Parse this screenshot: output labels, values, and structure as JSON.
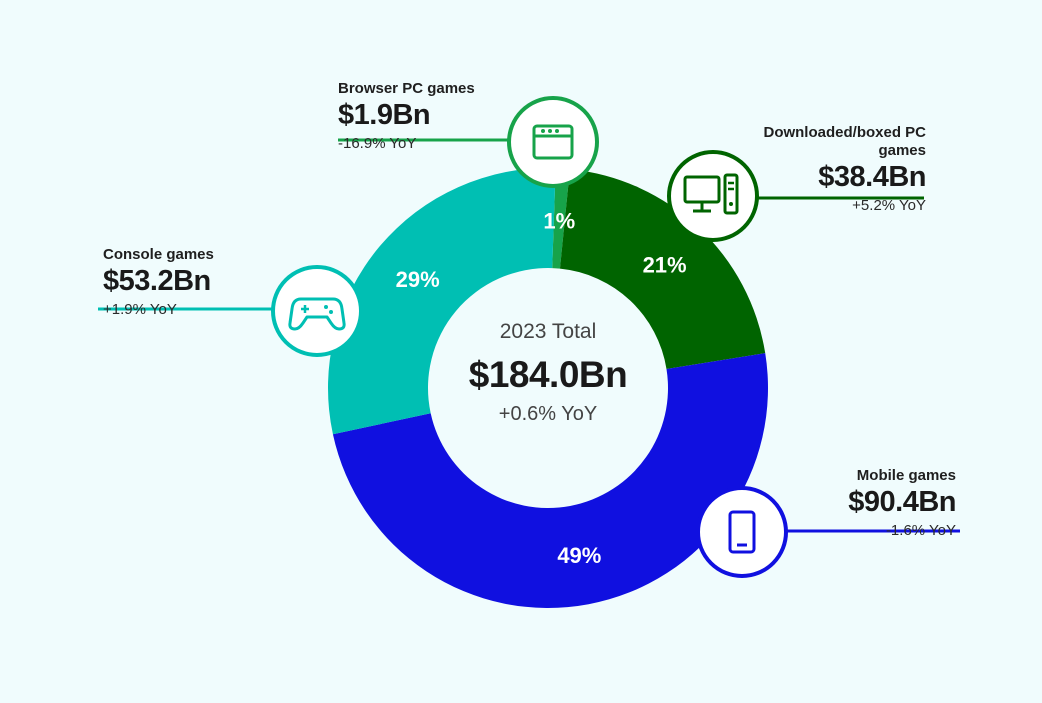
{
  "center": {
    "title": "2023 Total",
    "value": "$184.0Bn",
    "yoy": "+0.6% YoY"
  },
  "segments": {
    "browser": {
      "name": "Browser PC games",
      "value": "$1.9Bn",
      "yoy": "-16.9% YoY",
      "pct": "1%",
      "icon": "browser-window-icon"
    },
    "downloaded": {
      "name": "Downloaded/boxed PC games",
      "value": "$38.4Bn",
      "yoy": "+5.2% YoY",
      "pct": "21%",
      "icon": "desktop-pc-icon"
    },
    "mobile": {
      "name": "Mobile games",
      "value": "$90.4Bn",
      "yoy": "-1.6% YoY",
      "pct": "49%",
      "icon": "smartphone-icon"
    },
    "console": {
      "name": "Console games",
      "value": "$53.2Bn",
      "yoy": "+1.9% YoY",
      "pct": "29%",
      "icon": "gamepad-icon"
    }
  },
  "colors": {
    "browser": "#17a34a",
    "downloaded": "#006400",
    "mobile": "#1010e0",
    "console": "#00bfb3",
    "background": "#f0fcfd"
  },
  "chart_data": {
    "type": "pie",
    "title": "2023 Total",
    "categories": [
      "Browser PC games",
      "Downloaded/boxed PC games",
      "Mobile games",
      "Console games"
    ],
    "values": [
      1.9,
      38.4,
      90.4,
      53.2
    ],
    "percentages": [
      1,
      21,
      49,
      29
    ],
    "unit": "$Bn",
    "total": 184.0
  }
}
